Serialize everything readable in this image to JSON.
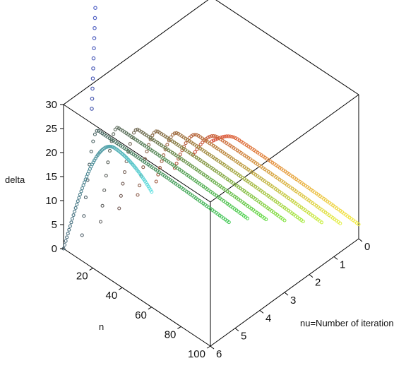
{
  "chart_data": {
    "type": "line",
    "plot_kind": "3d-point-curves",
    "xlabel": "n",
    "ylabel": "nu=Number of iteration",
    "zlabel": "delta",
    "x_ticks": [
      "20",
      "40",
      "60",
      "80",
      "100"
    ],
    "y_ticks": [
      "0",
      "1",
      "2",
      "3",
      "4",
      "5",
      "6"
    ],
    "z_ticks": [
      "0",
      "5",
      "10",
      "15",
      "20",
      "25",
      "30"
    ],
    "x_range": [
      0,
      100
    ],
    "y_range": [
      0,
      6
    ],
    "z_range": [
      0,
      30
    ],
    "series": [
      {
        "nu": 0,
        "peak_n": 18,
        "peak_delta": 4,
        "end_delta": 3,
        "max_n": 100,
        "color_start": "#d94c3a",
        "color_end": "#f3f049"
      },
      {
        "nu": 0.75,
        "peak_n": 17,
        "peak_delta": 7,
        "end_delta": 6,
        "max_n": 100,
        "color_start": "#c8503e",
        "color_end": "#e4f04a"
      },
      {
        "nu": 1.5,
        "peak_n": 16,
        "peak_delta": 10,
        "end_delta": 9,
        "max_n": 100,
        "color_start": "#b5553f",
        "color_end": "#cbf045"
      },
      {
        "nu": 2.25,
        "peak_n": 15,
        "peak_delta": 13,
        "end_delta": 12,
        "max_n": 100,
        "color_start": "#9f5a40",
        "color_end": "#a8eb45"
      },
      {
        "nu": 3,
        "peak_n": 14,
        "peak_delta": 16,
        "end_delta": 15,
        "max_n": 100,
        "color_start": "#8a5a48",
        "color_end": "#86e446"
      },
      {
        "nu": 3.75,
        "peak_n": 13,
        "peak_delta": 19,
        "end_delta": 18,
        "max_n": 100,
        "color_start": "#735a55",
        "color_end": "#66dc48"
      },
      {
        "nu": 4.5,
        "peak_n": 12,
        "peak_delta": 22,
        "end_delta": 21,
        "max_n": 100,
        "color_start": "#5f5f5f",
        "color_end": "#52d453"
      },
      {
        "nu": 5.25,
        "peak_n": 11,
        "peak_delta": 24,
        "end_delta": 23,
        "max_n": 100,
        "color_start": "#4c5c66",
        "color_end": "#4acb5c"
      },
      {
        "nu": 6,
        "peak_n": 35,
        "peak_delta": 28,
        "end_delta": 24,
        "max_n": 60,
        "color_start": "#4a6a7a",
        "color_end": "#5ee0e0"
      },
      {
        "nu": 6,
        "peak_n": 0,
        "peak_delta": 60,
        "end_delta": 60,
        "max_n": 0,
        "color_start": "#4a5ab0",
        "color_end": "#5a6ad0"
      }
    ]
  }
}
